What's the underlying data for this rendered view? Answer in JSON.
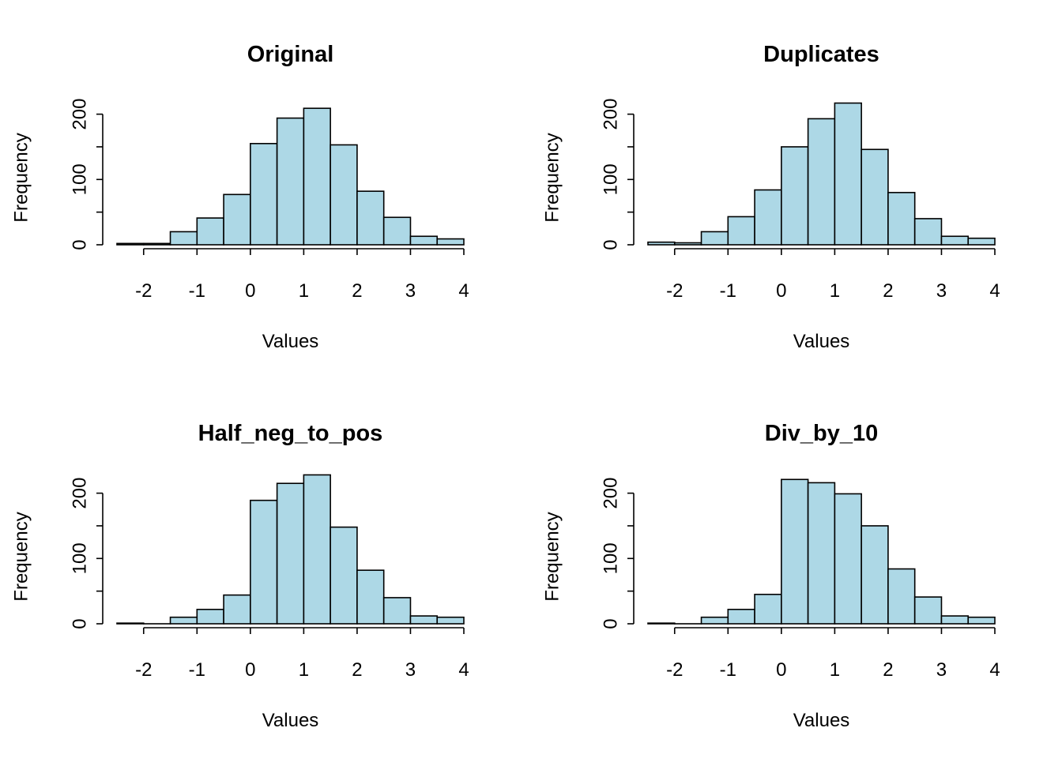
{
  "colors": {
    "bar_fill": "#add8e6",
    "bar_stroke": "#000000",
    "axis": "#000000",
    "background": "#ffffff"
  },
  "chart_data": [
    {
      "type": "bar",
      "title": "Original",
      "xlabel": "Values",
      "ylabel": "Frequency",
      "bin_edges": [
        -2.5,
        -2,
        -1.5,
        -1,
        -0.5,
        0,
        0.5,
        1,
        1.5,
        2,
        2.5,
        3,
        3.5,
        4
      ],
      "values": [
        2,
        2,
        20,
        41,
        77,
        155,
        194,
        209,
        153,
        82,
        42,
        13,
        9
      ],
      "xlim": [
        -2.5,
        4
      ],
      "ylim": [
        0,
        209
      ],
      "xticks": [
        "-2",
        "-1",
        "0",
        "1",
        "2",
        "3",
        "4"
      ],
      "yticks": [
        "0",
        "100",
        "200"
      ],
      "grid": false
    },
    {
      "type": "bar",
      "title": "Duplicates",
      "xlabel": "Values",
      "ylabel": "Frequency",
      "bin_edges": [
        -2.5,
        -2,
        -1.5,
        -1,
        -0.5,
        0,
        0.5,
        1,
        1.5,
        2,
        2.5,
        3,
        3.5,
        4
      ],
      "values": [
        4,
        3,
        20,
        43,
        84,
        150,
        193,
        217,
        146,
        80,
        40,
        13,
        10
      ],
      "xlim": [
        -2.5,
        4
      ],
      "ylim": [
        0,
        217
      ],
      "xticks": [
        "-2",
        "-1",
        "0",
        "1",
        "2",
        "3",
        "4"
      ],
      "yticks": [
        "0",
        "100",
        "200"
      ],
      "grid": false
    },
    {
      "type": "bar",
      "title": "Half_neg_to_pos",
      "xlabel": "Values",
      "ylabel": "Frequency",
      "bin_edges": [
        -2.5,
        -2,
        -1.5,
        -1,
        -0.5,
        0,
        0.5,
        1,
        1.5,
        2,
        2.5,
        3,
        3.5,
        4
      ],
      "values": [
        1,
        0,
        10,
        22,
        44,
        189,
        215,
        228,
        148,
        82,
        40,
        12,
        10
      ],
      "xlim": [
        -2.5,
        4
      ],
      "ylim": [
        0,
        228
      ],
      "xticks": [
        "-2",
        "-1",
        "0",
        "1",
        "2",
        "3",
        "4"
      ],
      "yticks": [
        "0",
        "100",
        "200"
      ],
      "grid": false
    },
    {
      "type": "bar",
      "title": "Div_by_10",
      "xlabel": "Values",
      "ylabel": "Frequency",
      "bin_edges": [
        -2.5,
        -2,
        -1.5,
        -1,
        -0.5,
        0,
        0.5,
        1,
        1.5,
        2,
        2.5,
        3,
        3.5,
        4
      ],
      "values": [
        1,
        0,
        10,
        22,
        45,
        221,
        216,
        199,
        150,
        84,
        41,
        12,
        10
      ],
      "xlim": [
        -2.5,
        4
      ],
      "ylim": [
        0,
        221
      ],
      "xticks": [
        "-2",
        "-1",
        "0",
        "1",
        "2",
        "3",
        "4"
      ],
      "yticks": [
        "0",
        "100",
        "200"
      ],
      "grid": false
    }
  ]
}
